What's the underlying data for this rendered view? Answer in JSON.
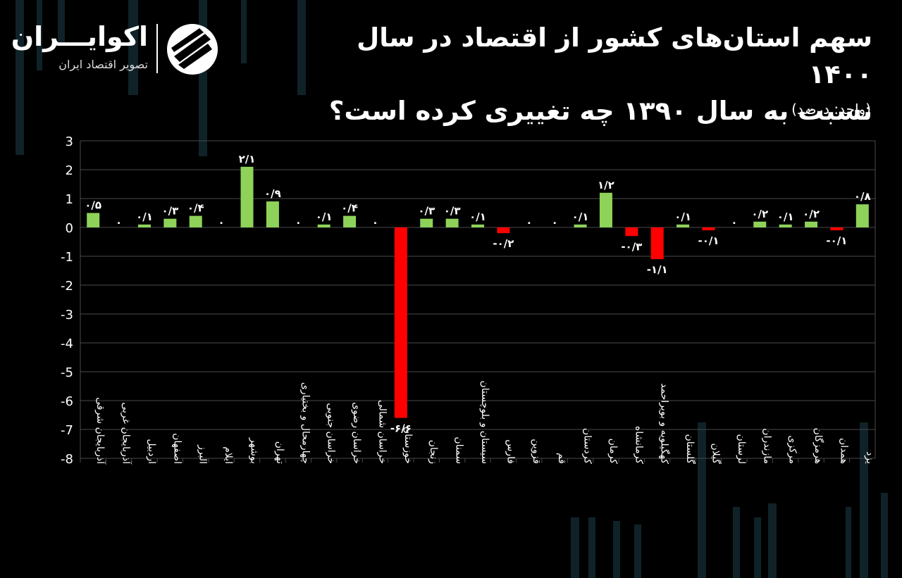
{
  "header": {
    "title_line1": "سهم استان‌های کشور از اقتصاد در سال ۱۴۰۰",
    "title_line2": "نسبت به سال ۱۳۹۰ چه تغییری کرده است؟",
    "unit": "(واحد: درصد)"
  },
  "logo": {
    "name": "اکوایـــران",
    "tagline": "تصویر اقتصاد ایران",
    "icon": "ecoiran-logo-icon"
  },
  "colors": {
    "background": "#000000",
    "positive": "#8ed25a",
    "negative": "#ff0000",
    "grid": "#4a4a4a",
    "text": "#ffffff"
  },
  "chart_data": {
    "type": "bar",
    "title": "سهم استان‌های کشور از اقتصاد در سال ۱۴۰۰ نسبت به سال ۱۳۹۰ چه تغییری کرده است؟",
    "ylabel": "",
    "xlabel": "",
    "ylim": [
      -8,
      3
    ],
    "grid": true,
    "y_ticks": [
      3,
      2,
      1,
      0,
      -1,
      -2,
      -3,
      -4,
      -5,
      -6,
      -7,
      -8
    ],
    "y_tick_labels": [
      "3",
      "2",
      "1",
      "0",
      "-1",
      "-2",
      "-3",
      "-4",
      "-5",
      "-6",
      "-7",
      "-8"
    ],
    "categories": [
      "آذربایجان شرقی",
      "آذربایجان غربی",
      "اردبیل",
      "اصفهان",
      "البرز",
      "ایلام",
      "بوشهر",
      "تهران",
      "چهارمحال و بختیاری",
      "خراسان جنوبی",
      "خراسان رضوی",
      "خراسان شمالی",
      "خوزستان",
      "زنجان",
      "سمنان",
      "سیستان و بلوچستان",
      "فارس",
      "قزوین",
      "قم",
      "کردستان",
      "کرمان",
      "کرمانشاه",
      "کهگیلویه و بویراحمد",
      "گلستان",
      "گیلان",
      "لرستان",
      "مازندران",
      "مرکزی",
      "هرمزگان",
      "همدان",
      "یزد"
    ],
    "values": [
      0.5,
      0,
      0.1,
      0.3,
      0.4,
      0,
      2.1,
      0.9,
      0,
      0.1,
      0.4,
      0,
      -6.6,
      0.3,
      0.3,
      0.1,
      -0.2,
      0,
      0,
      0.1,
      1.2,
      -0.3,
      -1.1,
      0.1,
      -0.1,
      0,
      0.2,
      0.1,
      0.2,
      -0.1,
      0.8
    ],
    "data_labels": [
      "۰/۵",
      "۰",
      "۰/۱",
      "۰/۳",
      "۰/۴",
      "۰",
      "۲/۱",
      "۰/۹",
      "۰",
      "۰/۱",
      "۰/۴",
      "۰",
      "-۶/۶",
      "۰/۳",
      "۰/۳",
      "۰/۱",
      "-۰/۲",
      "۰",
      "۰",
      "۰/۱",
      "۱/۲",
      "-۰/۳",
      "-۱/۱",
      "۰/۱",
      "-۰/۱",
      "۰",
      "۰/۲",
      "۰/۱",
      "۰/۲",
      "-۰/۱",
      "۰/۸"
    ]
  }
}
